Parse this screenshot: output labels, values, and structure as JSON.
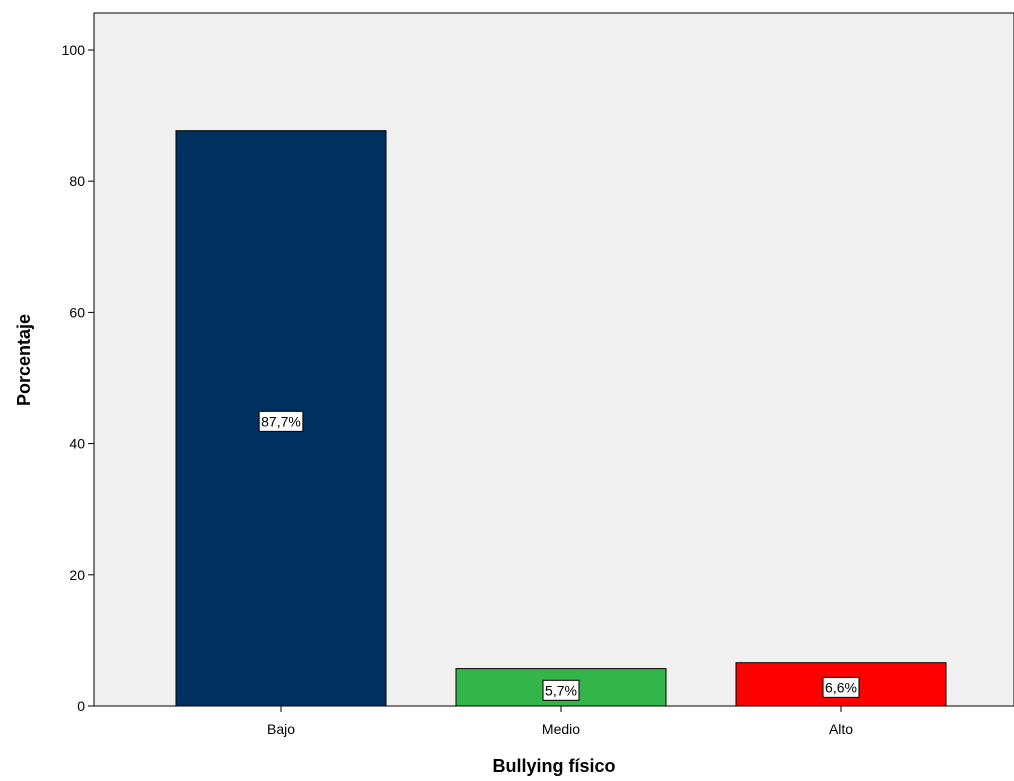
{
  "chart_data": {
    "type": "bar",
    "title": "",
    "xlabel": "Bullying físico",
    "ylabel": "Porcentaje",
    "categories": [
      "Bajo",
      "Medio",
      "Alto"
    ],
    "values": [
      87.7,
      5.7,
      6.6
    ],
    "data_labels": [
      "87,7%",
      "5,7%",
      "6,6%"
    ],
    "colors": [
      "#003060",
      "#33b54a",
      "#ff0000"
    ],
    "ylim": [
      0,
      100
    ],
    "yticks": [
      0,
      20,
      40,
      60,
      80,
      100
    ],
    "grid": false,
    "legend": "none",
    "plot_background": "#f0f0f0"
  }
}
